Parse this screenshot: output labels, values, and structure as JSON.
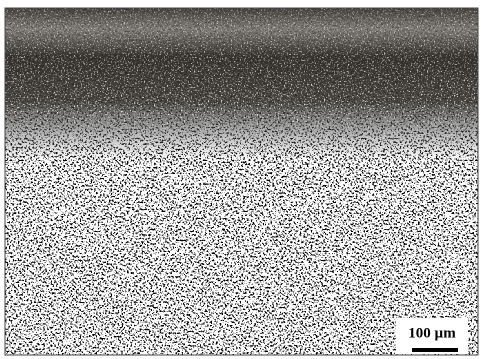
{
  "scale_bar": {
    "label": "100 µm"
  }
}
